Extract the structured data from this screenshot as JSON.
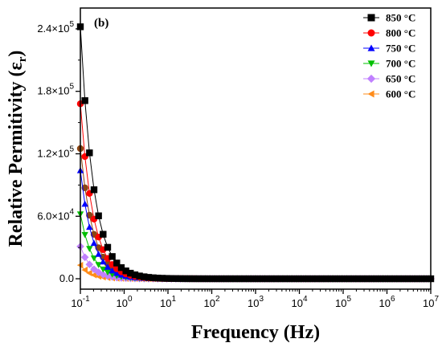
{
  "chart_data": {
    "type": "scatter",
    "panel_label": "(b)",
    "xlabel": "Frequency (Hz)",
    "ylabel_main": "Relative Permitivity (ε",
    "ylabel_sub": "r",
    "ylabel_close": ")",
    "x_scale": "log",
    "xlim": [
      0.1,
      10000000
    ],
    "ylim": [
      -10000,
      260000
    ],
    "x_ticks": [
      {
        "value": 0.1,
        "base": "10",
        "exp": "-1"
      },
      {
        "value": 1,
        "base": "10",
        "exp": "0"
      },
      {
        "value": 10,
        "base": "10",
        "exp": "1"
      },
      {
        "value": 100,
        "base": "10",
        "exp": "2"
      },
      {
        "value": 1000,
        "base": "10",
        "exp": "3"
      },
      {
        "value": 10000,
        "base": "10",
        "exp": "4"
      },
      {
        "value": 100000,
        "base": "10",
        "exp": "5"
      },
      {
        "value": 1000000,
        "base": "10",
        "exp": "6"
      },
      {
        "value": 10000000,
        "base": "10",
        "exp": "7"
      }
    ],
    "y_ticks": [
      {
        "value": 0,
        "label": "0.0",
        "exp": ""
      },
      {
        "value": 60000,
        "label": "6.0×10",
        "exp": "4"
      },
      {
        "value": 120000,
        "label": "1.2×10",
        "exp": "5"
      },
      {
        "value": 180000,
        "label": "1.8×10",
        "exp": "5"
      },
      {
        "value": 240000,
        "label": "2.4×10",
        "exp": "5"
      }
    ],
    "legend_position": "top-right",
    "series": [
      {
        "name": "850 °C",
        "marker": "square",
        "color": "#000000",
        "a": 242000,
        "k": 1.45
      },
      {
        "name": "800 °C",
        "marker": "circle",
        "color": "#ff0000",
        "a": 168000,
        "k": 1.5
      },
      {
        "name": "750 °C",
        "marker": "triangle-up",
        "color": "#0000ff",
        "a": 104000,
        "k": 1.55
      },
      {
        "name": "700 °C",
        "marker": "triangle-down",
        "color": "#00c000",
        "a": 62000,
        "k": 1.6
      },
      {
        "name": "650 °C",
        "marker": "diamond",
        "color": "#c080ff",
        "a": 31000,
        "k": 1.7
      },
      {
        "name": "600 °C",
        "marker": "triangle-left",
        "color": "#ff8c1a",
        "a": 13000,
        "k": 1.8
      }
    ],
    "unlabeled_series": [
      {
        "marker": "circle",
        "color": "#8b4513",
        "a": 125000,
        "k": 1.5
      }
    ]
  }
}
